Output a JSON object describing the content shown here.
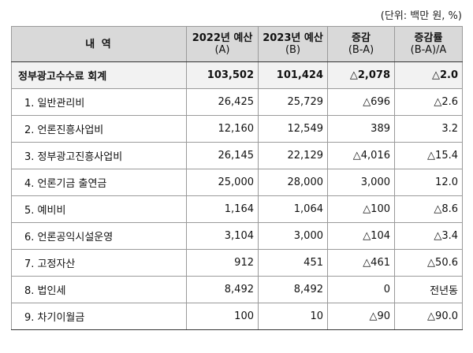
{
  "unit_note": "(단위: 백만 원, %)",
  "header": {
    "name": "내 역",
    "col_a_line1": "2022년 예산",
    "col_a_line2": "(A)",
    "col_b_line1": "2023년 예산",
    "col_b_line2": "(B)",
    "col_diff_line1": "증감",
    "col_diff_line2": "(B-A)",
    "col_rate_line1": "증감률",
    "col_rate_line2": "(B-A)/A"
  },
  "total": {
    "name": "정부광고수수료 회계",
    "a": "103,502",
    "b": "101,424",
    "diff": "△2,078",
    "rate": "△2.0"
  },
  "rows": [
    {
      "name": "1. 일반관리비",
      "a": "26,425",
      "b": "25,729",
      "diff": "△696",
      "rate": "△2.6"
    },
    {
      "name": "2. 언론진흥사업비",
      "a": "12,160",
      "b": "12,549",
      "diff": "389",
      "rate": "3.2"
    },
    {
      "name": "3. 정부광고진흥사업비",
      "a": "26,145",
      "b": "22,129",
      "diff": "△4,016",
      "rate": "△15.4"
    },
    {
      "name": "4. 언론기금 출연금",
      "a": "25,000",
      "b": "28,000",
      "diff": "3,000",
      "rate": "12.0"
    },
    {
      "name": "5. 예비비",
      "a": "1,164",
      "b": "1,064",
      "diff": "△100",
      "rate": "△8.6"
    },
    {
      "name": "6. 언론공익시설운영",
      "a": "3,104",
      "b": "3,000",
      "diff": "△104",
      "rate": "△3.4"
    },
    {
      "name": "7. 고정자산",
      "a": "912",
      "b": "451",
      "diff": "△461",
      "rate": "△50.6"
    },
    {
      "name": "8. 법인세",
      "a": "8,492",
      "b": "8,492",
      "diff": "0",
      "rate": "전년동"
    },
    {
      "name": "9. 차기이월금",
      "a": "100",
      "b": "10",
      "diff": "△90",
      "rate": "△90.0"
    }
  ]
}
